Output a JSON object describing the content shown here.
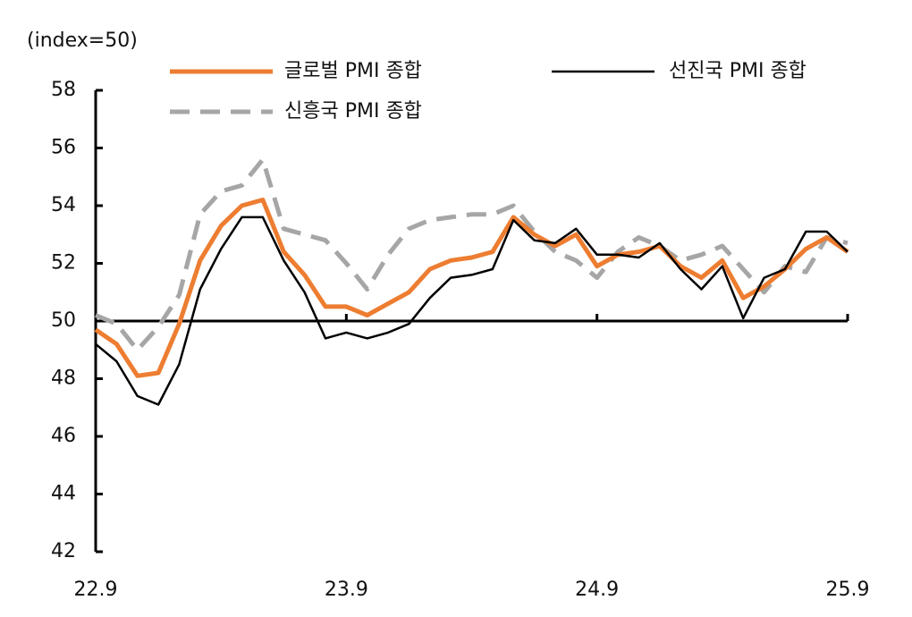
{
  "chart_data": {
    "type": "line",
    "ylabel": "(index=50)",
    "categories": [
      "22.9",
      null,
      null,
      null,
      null,
      null,
      null,
      null,
      null,
      null,
      null,
      null,
      "23.9",
      null,
      null,
      null,
      null,
      null,
      null,
      null,
      null,
      null,
      null,
      null,
      "24.9",
      null,
      null,
      null,
      null,
      null,
      null,
      null,
      null,
      null,
      null,
      null,
      "25.9"
    ],
    "ylim": [
      42,
      58
    ],
    "yticks": [
      42,
      44,
      46,
      48,
      50,
      52,
      54,
      56,
      58
    ],
    "baseline": 50,
    "series": [
      {
        "name": "글로벌 PMI 종합",
        "color": "#ed7d31",
        "style": "solid",
        "width": 5,
        "values": [
          49.7,
          49.2,
          48.1,
          48.2,
          49.9,
          52.1,
          53.3,
          54.0,
          54.2,
          52.4,
          51.6,
          50.5,
          50.5,
          50.2,
          50.6,
          51.0,
          51.8,
          52.1,
          52.2,
          52.4,
          53.6,
          53.0,
          52.6,
          53.0,
          51.9,
          52.3,
          52.4,
          52.6,
          51.9,
          51.5,
          52.1,
          50.8,
          51.2,
          51.8,
          52.5,
          52.9,
          52.4
        ]
      },
      {
        "name": "선진국 PMI 종합",
        "color": "#000000",
        "style": "solid",
        "width": 2.5,
        "values": [
          49.2,
          48.6,
          47.4,
          47.1,
          48.5,
          51.1,
          52.5,
          53.6,
          53.6,
          52.1,
          51.0,
          49.4,
          49.6,
          49.4,
          49.6,
          49.9,
          50.8,
          51.5,
          51.6,
          51.8,
          53.5,
          52.8,
          52.7,
          53.2,
          52.3,
          52.3,
          52.2,
          52.7,
          51.8,
          51.1,
          51.9,
          50.1,
          51.5,
          51.8,
          53.1,
          53.1,
          52.4
        ]
      },
      {
        "name": "신흥국 PMI 종합",
        "color": "#a6a6a6",
        "style": "dashed",
        "width": 5,
        "values": [
          50.2,
          49.9,
          49.0,
          49.8,
          50.9,
          53.7,
          54.5,
          54.7,
          55.6,
          53.2,
          53.0,
          52.8,
          52.0,
          51.1,
          52.3,
          53.2,
          53.5,
          53.6,
          53.7,
          53.7,
          54.0,
          53.1,
          52.4,
          52.1,
          51.5,
          52.4,
          52.9,
          52.6,
          52.1,
          52.3,
          52.6,
          51.8,
          51.0,
          51.9,
          51.7,
          52.9,
          52.7
        ]
      }
    ]
  }
}
